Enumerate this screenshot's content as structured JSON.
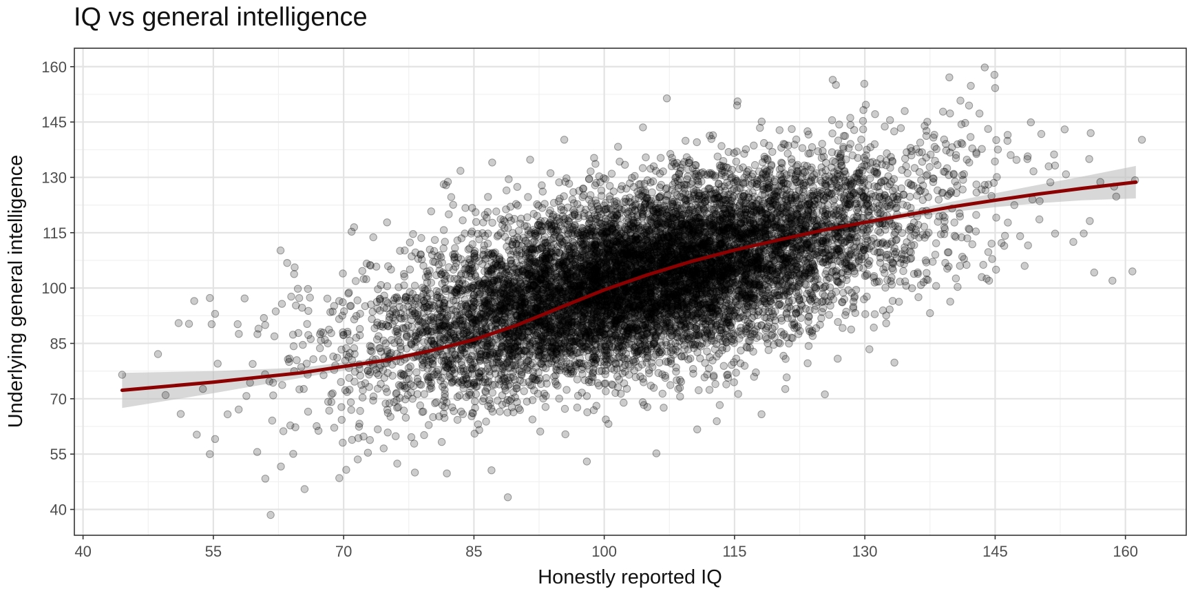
{
  "chart_data": {
    "type": "scatter",
    "title": "IQ vs general intelligence",
    "xlabel": "Honestly reported IQ",
    "ylabel": "Underlying general intelligence",
    "xlim": [
      39,
      167
    ],
    "ylim": [
      33,
      165
    ],
    "x_ticks": [
      40,
      55,
      70,
      85,
      100,
      115,
      130,
      145,
      160
    ],
    "y_ticks": [
      40,
      55,
      70,
      85,
      100,
      115,
      130,
      145,
      160
    ],
    "grid": true,
    "legend": "none",
    "point_color": "#000000",
    "point_alpha": 0.2,
    "n_points_approx": 10000,
    "labeled_points": [
      {
        "x": 44.5,
        "y": 76.5
      },
      {
        "x": 49.5,
        "y": 71.0
      },
      {
        "x": 51.0,
        "y": 90.5
      },
      {
        "x": 52.2,
        "y": 90.3
      },
      {
        "x": 52.8,
        "y": 96.5
      },
      {
        "x": 54.6,
        "y": 97.3
      },
      {
        "x": 54.8,
        "y": 90.2
      },
      {
        "x": 55.2,
        "y": 93.0
      },
      {
        "x": 55.5,
        "y": 79.5
      },
      {
        "x": 54.6,
        "y": 55.0
      },
      {
        "x": 57.8,
        "y": 90.2
      },
      {
        "x": 61.6,
        "y": 38.5
      },
      {
        "x": 60.2,
        "y": 89.0
      },
      {
        "x": 63.5,
        "y": 106.8
      },
      {
        "x": 64.3,
        "y": 103.8
      },
      {
        "x": 65.5,
        "y": 45.5
      },
      {
        "x": 69.5,
        "y": 48.5
      },
      {
        "x": 71.2,
        "y": 116.5
      },
      {
        "x": 75.0,
        "y": 117.8
      },
      {
        "x": 78.2,
        "y": 50.0
      },
      {
        "x": 82.0,
        "y": 128.8
      },
      {
        "x": 88.9,
        "y": 43.3
      },
      {
        "x": 89.0,
        "y": 129.5
      },
      {
        "x": 95.4,
        "y": 140.2
      },
      {
        "x": 98.0,
        "y": 53.0
      },
      {
        "x": 106.0,
        "y": 55.2
      },
      {
        "x": 110.7,
        "y": 61.7
      },
      {
        "x": 121.0,
        "y": 75.8
      },
      {
        "x": 125.4,
        "y": 71.2
      },
      {
        "x": 133.4,
        "y": 79.8
      },
      {
        "x": 137.5,
        "y": 93.2
      },
      {
        "x": 139.0,
        "y": 147.8
      },
      {
        "x": 141.0,
        "y": 150.8
      },
      {
        "x": 142.2,
        "y": 154.8
      },
      {
        "x": 143.2,
        "y": 147.3
      },
      {
        "x": 143.8,
        "y": 159.8
      },
      {
        "x": 144.3,
        "y": 102.0
      },
      {
        "x": 145.0,
        "y": 154.2
      },
      {
        "x": 145.1,
        "y": 105.0
      },
      {
        "x": 148.4,
        "y": 106.0
      },
      {
        "x": 153.0,
        "y": 143.0
      },
      {
        "x": 154.0,
        "y": 112.5
      },
      {
        "x": 155.2,
        "y": 114.8
      },
      {
        "x": 156.0,
        "y": 142.0
      },
      {
        "x": 156.4,
        "y": 104.2
      },
      {
        "x": 158.5,
        "y": 102.0
      },
      {
        "x": 158.7,
        "y": 127.5
      },
      {
        "x": 160.8,
        "y": 104.5
      },
      {
        "x": 161.1,
        "y": 129.2
      }
    ],
    "cloud_model": {
      "x_mean": 105,
      "x_sd": 15,
      "x_range": [
        44,
        162
      ],
      "y_mean": 103,
      "y_sd": 15,
      "y_range": [
        36,
        162
      ],
      "correlation": 0.6
    },
    "smooth": {
      "color": "#8b0000",
      "band_color": "#bebebe",
      "points": [
        {
          "x": 44.5,
          "y": 72.3,
          "lo": 67.5,
          "hi": 77.0
        },
        {
          "x": 55.0,
          "y": 74.5,
          "lo": 71.5,
          "hi": 77.5
        },
        {
          "x": 65.0,
          "y": 77.0,
          "lo": 75.6,
          "hi": 78.4
        },
        {
          "x": 75.0,
          "y": 80.5,
          "lo": 79.7,
          "hi": 81.3
        },
        {
          "x": 80.0,
          "y": 83.0,
          "lo": 82.4,
          "hi": 83.6
        },
        {
          "x": 85.0,
          "y": 86.0,
          "lo": 85.6,
          "hi": 86.4
        },
        {
          "x": 90.0,
          "y": 90.0,
          "lo": 89.7,
          "hi": 90.3
        },
        {
          "x": 95.0,
          "y": 94.8,
          "lo": 94.5,
          "hi": 95.1
        },
        {
          "x": 100.0,
          "y": 99.5,
          "lo": 99.2,
          "hi": 99.8
        },
        {
          "x": 105.0,
          "y": 103.6,
          "lo": 103.3,
          "hi": 103.9
        },
        {
          "x": 110.0,
          "y": 107.2,
          "lo": 106.9,
          "hi": 107.5
        },
        {
          "x": 115.0,
          "y": 110.3,
          "lo": 110.0,
          "hi": 110.6
        },
        {
          "x": 120.0,
          "y": 113.0,
          "lo": 112.6,
          "hi": 113.4
        },
        {
          "x": 125.0,
          "y": 115.6,
          "lo": 115.1,
          "hi": 116.1
        },
        {
          "x": 130.0,
          "y": 117.8,
          "lo": 117.1,
          "hi": 118.5
        },
        {
          "x": 135.0,
          "y": 119.9,
          "lo": 118.9,
          "hi": 120.9
        },
        {
          "x": 140.0,
          "y": 122.0,
          "lo": 120.6,
          "hi": 123.4
        },
        {
          "x": 145.0,
          "y": 123.8,
          "lo": 121.9,
          "hi": 125.7
        },
        {
          "x": 150.0,
          "y": 125.5,
          "lo": 123.0,
          "hi": 128.0
        },
        {
          "x": 155.0,
          "y": 127.0,
          "lo": 123.8,
          "hi": 130.2
        },
        {
          "x": 161.2,
          "y": 128.7,
          "lo": 124.3,
          "hi": 133.1
        }
      ]
    }
  }
}
